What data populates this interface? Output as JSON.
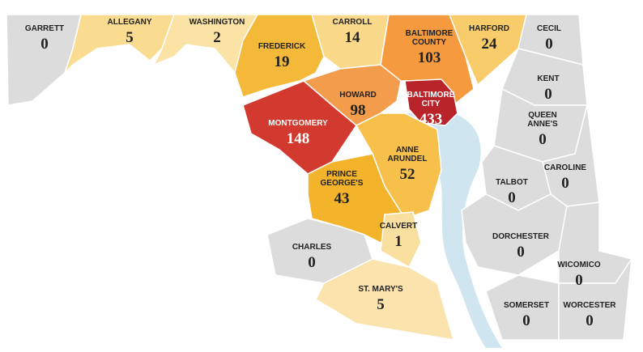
{
  "counties": [
    {
      "name": [
        "GARRETT"
      ],
      "value": 0,
      "color": "#dcdcdc"
    },
    {
      "name": [
        "ALLEGANY"
      ],
      "value": 5,
      "color": "#f9dc8f"
    },
    {
      "name": [
        "WASHINGTON"
      ],
      "value": 2,
      "color": "#fbe3a6"
    },
    {
      "name": [
        "FREDERICK"
      ],
      "value": 19,
      "color": "#f5b93a"
    },
    {
      "name": [
        "CARROLL"
      ],
      "value": 14,
      "color": "#fad98a"
    },
    {
      "name": [
        "BALTIMORE",
        "COUNTY"
      ],
      "value": 103,
      "color": "#f59a3e"
    },
    {
      "name": [
        "HARFORD"
      ],
      "value": 24,
      "color": "#f9cc6b"
    },
    {
      "name": [
        "CECIL"
      ],
      "value": 0,
      "color": "#dcdcdc"
    },
    {
      "name": [
        "HOWARD"
      ],
      "value": 98,
      "color": "#f39c4b"
    },
    {
      "name": [
        "BALTIMORE",
        "CITY"
      ],
      "value": 433,
      "color": "#b8242a"
    },
    {
      "name": [
        "MONTGOMERY"
      ],
      "value": 148,
      "color": "#d23a2f"
    },
    {
      "name": [
        "ANNE",
        "ARUNDEL"
      ],
      "value": 52,
      "color": "#f7c04a"
    },
    {
      "name": [
        "PRINCE",
        "GEORGE'S"
      ],
      "value": 43,
      "color": "#f3b32a"
    },
    {
      "name": [
        "CALVERT"
      ],
      "value": 1,
      "color": "#fae0a0"
    },
    {
      "name": [
        "CHARLES"
      ],
      "value": 0,
      "color": "#dcdcdc"
    },
    {
      "name": [
        "ST. MARY'S"
      ],
      "value": 5,
      "color": "#fbe3ad"
    },
    {
      "name": [
        "KENT"
      ],
      "value": 0,
      "color": "#dcdcdc"
    },
    {
      "name": [
        "QUEEN",
        "ANNE'S"
      ],
      "value": 0,
      "color": "#dcdcdc"
    },
    {
      "name": [
        "CAROLINE"
      ],
      "value": 0,
      "color": "#dcdcdc"
    },
    {
      "name": [
        "TALBOT"
      ],
      "value": 0,
      "color": "#dcdcdc"
    },
    {
      "name": [
        "DORCHESTER"
      ],
      "value": 0,
      "color": "#dcdcdc"
    },
    {
      "name": [
        "WICOMICO"
      ],
      "value": 0,
      "color": "#dcdcdc"
    },
    {
      "name": [
        "SOMERSET"
      ],
      "value": 0,
      "color": "#dcdcdc"
    },
    {
      "name": [
        "WORCESTER"
      ],
      "value": 0,
      "color": "#dcdcdc"
    }
  ]
}
